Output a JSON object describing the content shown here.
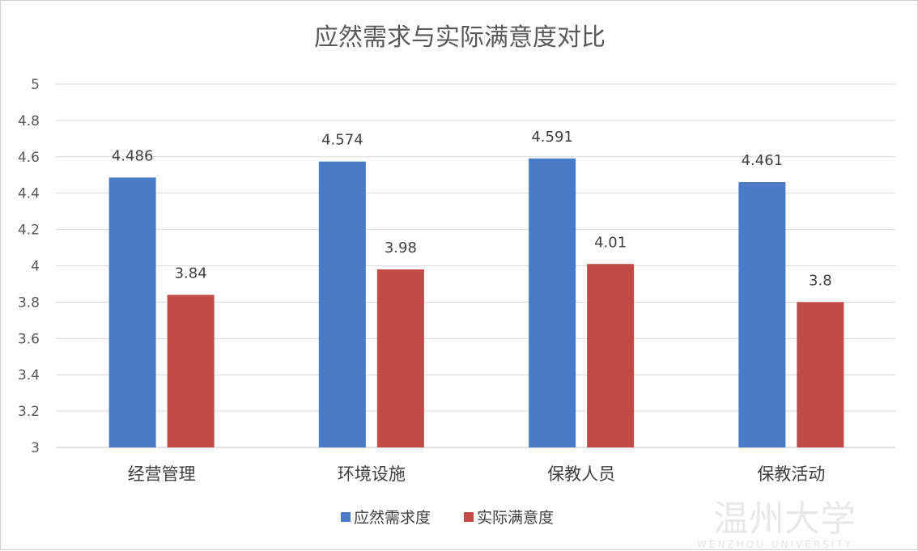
{
  "chart_data": {
    "type": "bar",
    "title": "应然需求与实际满意度对比",
    "categories": [
      "经营管理",
      "环境设施",
      "保教人员",
      "保教活动"
    ],
    "series": [
      {
        "name": "应然需求度",
        "values": [
          4.486,
          4.574,
          4.591,
          4.461
        ],
        "labels": [
          "4.486",
          "4.574",
          "4.591",
          "4.461"
        ],
        "color": "#4a7bc6"
      },
      {
        "name": "实际满意度",
        "values": [
          3.84,
          3.98,
          4.01,
          3.8
        ],
        "labels": [
          "3.84",
          "3.98",
          "4.01",
          "3.8"
        ],
        "color": "#c24a47"
      }
    ],
    "ylim": [
      3,
      5
    ],
    "yticks": [
      "3",
      "3.2",
      "3.4",
      "3.6",
      "3.8",
      "4",
      "4.2",
      "4.4",
      "4.6",
      "4.8",
      "5"
    ],
    "grid": true,
    "legend": "bottom",
    "xlabel": "",
    "ylabel": ""
  },
  "watermark": {
    "text": "温州大学",
    "subtext": "WENZHOU UNIVERSITY"
  }
}
